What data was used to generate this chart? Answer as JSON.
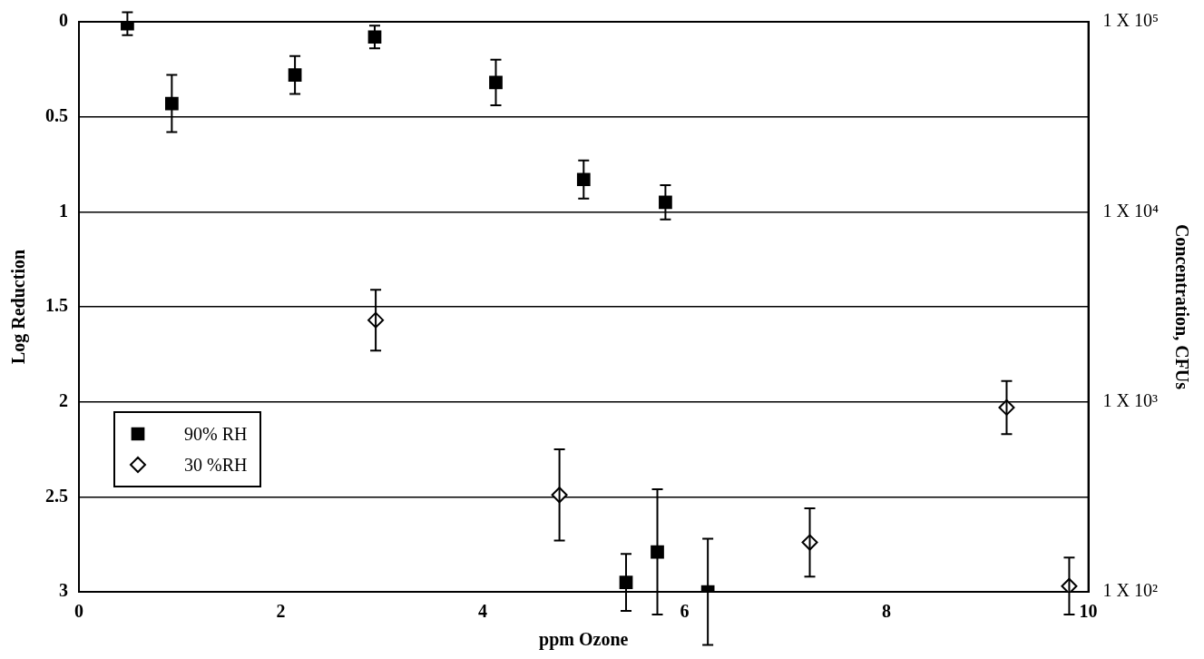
{
  "chart_data": {
    "type": "scatter",
    "xlabel": "ppm Ozone",
    "ylabel": "Log Reduction",
    "y2label": "Concentration, CFUs",
    "xlim": [
      0,
      10
    ],
    "xticks": [
      0,
      2,
      4,
      6,
      8,
      10
    ],
    "ylim": [
      3,
      0
    ],
    "yticks": [
      0,
      0.5,
      1,
      1.5,
      2,
      2.5,
      3
    ],
    "y2_categories": [
      "1 X 10⁵",
      "1 X 10⁴",
      "1 X 10³",
      "1 X 10²"
    ],
    "grid": "y",
    "legend": "left",
    "series": [
      {
        "name": "90% RH",
        "color": "#000000",
        "marker": "square",
        "x": [
          0.48,
          0.92,
          2.14,
          2.93,
          4.13,
          5.0,
          5.81,
          5.42,
          5.73,
          6.23
        ],
        "values": [
          0.01,
          0.43,
          0.28,
          0.08,
          0.32,
          0.83,
          0.95,
          2.95,
          2.79,
          3.0
        ],
        "errors": [
          0.06,
          0.15,
          0.1,
          0.06,
          0.12,
          0.1,
          0.09,
          0.15,
          0.33,
          0.28
        ]
      },
      {
        "name": "30 %RH",
        "color": "#000000",
        "marker": "diamond",
        "x": [
          2.94,
          4.76,
          7.24,
          9.19,
          9.81
        ],
        "values": [
          1.57,
          2.49,
          2.74,
          2.03,
          2.97
        ],
        "errors": [
          0.16,
          0.24,
          0.18,
          0.14,
          0.15
        ]
      }
    ]
  }
}
